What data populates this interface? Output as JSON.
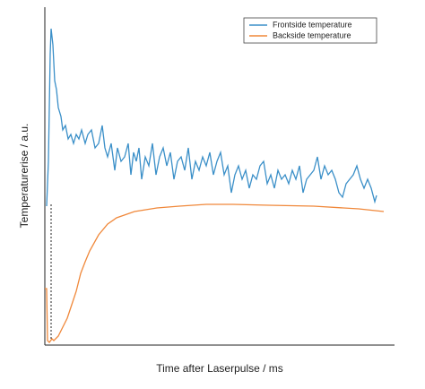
{
  "chart_data": {
    "type": "line",
    "xlabel": "Time after Laserpulse / ms",
    "ylabel": "Temperaturerise / a.u.",
    "xlim": [
      0,
      390
    ],
    "ylim": [
      0,
      377
    ],
    "legend": "upper right",
    "series": [
      {
        "name": "Frontside temperature",
        "color": "#3a8fc8",
        "x": [
          2,
          4,
          6,
          7,
          9,
          11,
          13,
          15,
          18,
          20,
          23,
          26,
          29,
          32,
          35,
          38,
          41,
          45,
          48,
          52,
          56,
          60,
          64,
          67,
          70,
          74,
          78,
          81,
          85,
          89,
          93,
          96,
          99,
          102,
          105,
          108,
          112,
          116,
          120,
          124,
          128,
          132,
          136,
          140,
          144,
          148,
          152,
          156,
          160,
          164,
          168,
          172,
          176,
          180,
          184,
          188,
          192,
          196,
          200,
          204,
          208,
          212,
          216,
          220,
          224,
          228,
          232,
          236,
          240,
          244,
          248,
          252,
          256,
          260,
          264,
          268,
          272,
          276,
          280,
          284,
          288,
          292,
          296,
          300,
          304,
          308,
          312,
          316,
          320,
          324,
          328,
          332,
          336,
          340,
          344,
          348,
          352,
          356,
          360,
          364,
          368,
          370
        ],
        "values": [
          155,
          205,
          325,
          353,
          335,
          295,
          285,
          265,
          255,
          240,
          245,
          230,
          235,
          225,
          235,
          230,
          240,
          225,
          235,
          240,
          220,
          225,
          245,
          220,
          210,
          225,
          195,
          220,
          205,
          210,
          225,
          190,
          215,
          205,
          220,
          185,
          210,
          200,
          225,
          190,
          210,
          220,
          200,
          215,
          185,
          205,
          210,
          195,
          220,
          185,
          205,
          195,
          210,
          200,
          215,
          190,
          205,
          215,
          190,
          200,
          170,
          190,
          200,
          185,
          195,
          175,
          190,
          185,
          200,
          205,
          180,
          190,
          175,
          195,
          185,
          190,
          180,
          195,
          185,
          200,
          170,
          185,
          190,
          195,
          210,
          185,
          200,
          190,
          195,
          185,
          170,
          165,
          180,
          185,
          190,
          200,
          185,
          175,
          185,
          175,
          160,
          167
        ]
      },
      {
        "name": "Backside temperature",
        "color": "#f0883a",
        "x": [
          0,
          2,
          3,
          5,
          8,
          10,
          15,
          20,
          25,
          30,
          35,
          40,
          45,
          50,
          60,
          70,
          80,
          100,
          125,
          150,
          180,
          210,
          250,
          300,
          350,
          378
        ],
        "values": [
          63,
          63,
          5,
          3,
          7,
          5,
          10,
          20,
          30,
          45,
          60,
          80,
          93,
          105,
          123,
          135,
          142,
          149,
          153,
          155,
          157,
          157,
          156,
          155,
          152,
          149
        ]
      }
    ]
  }
}
